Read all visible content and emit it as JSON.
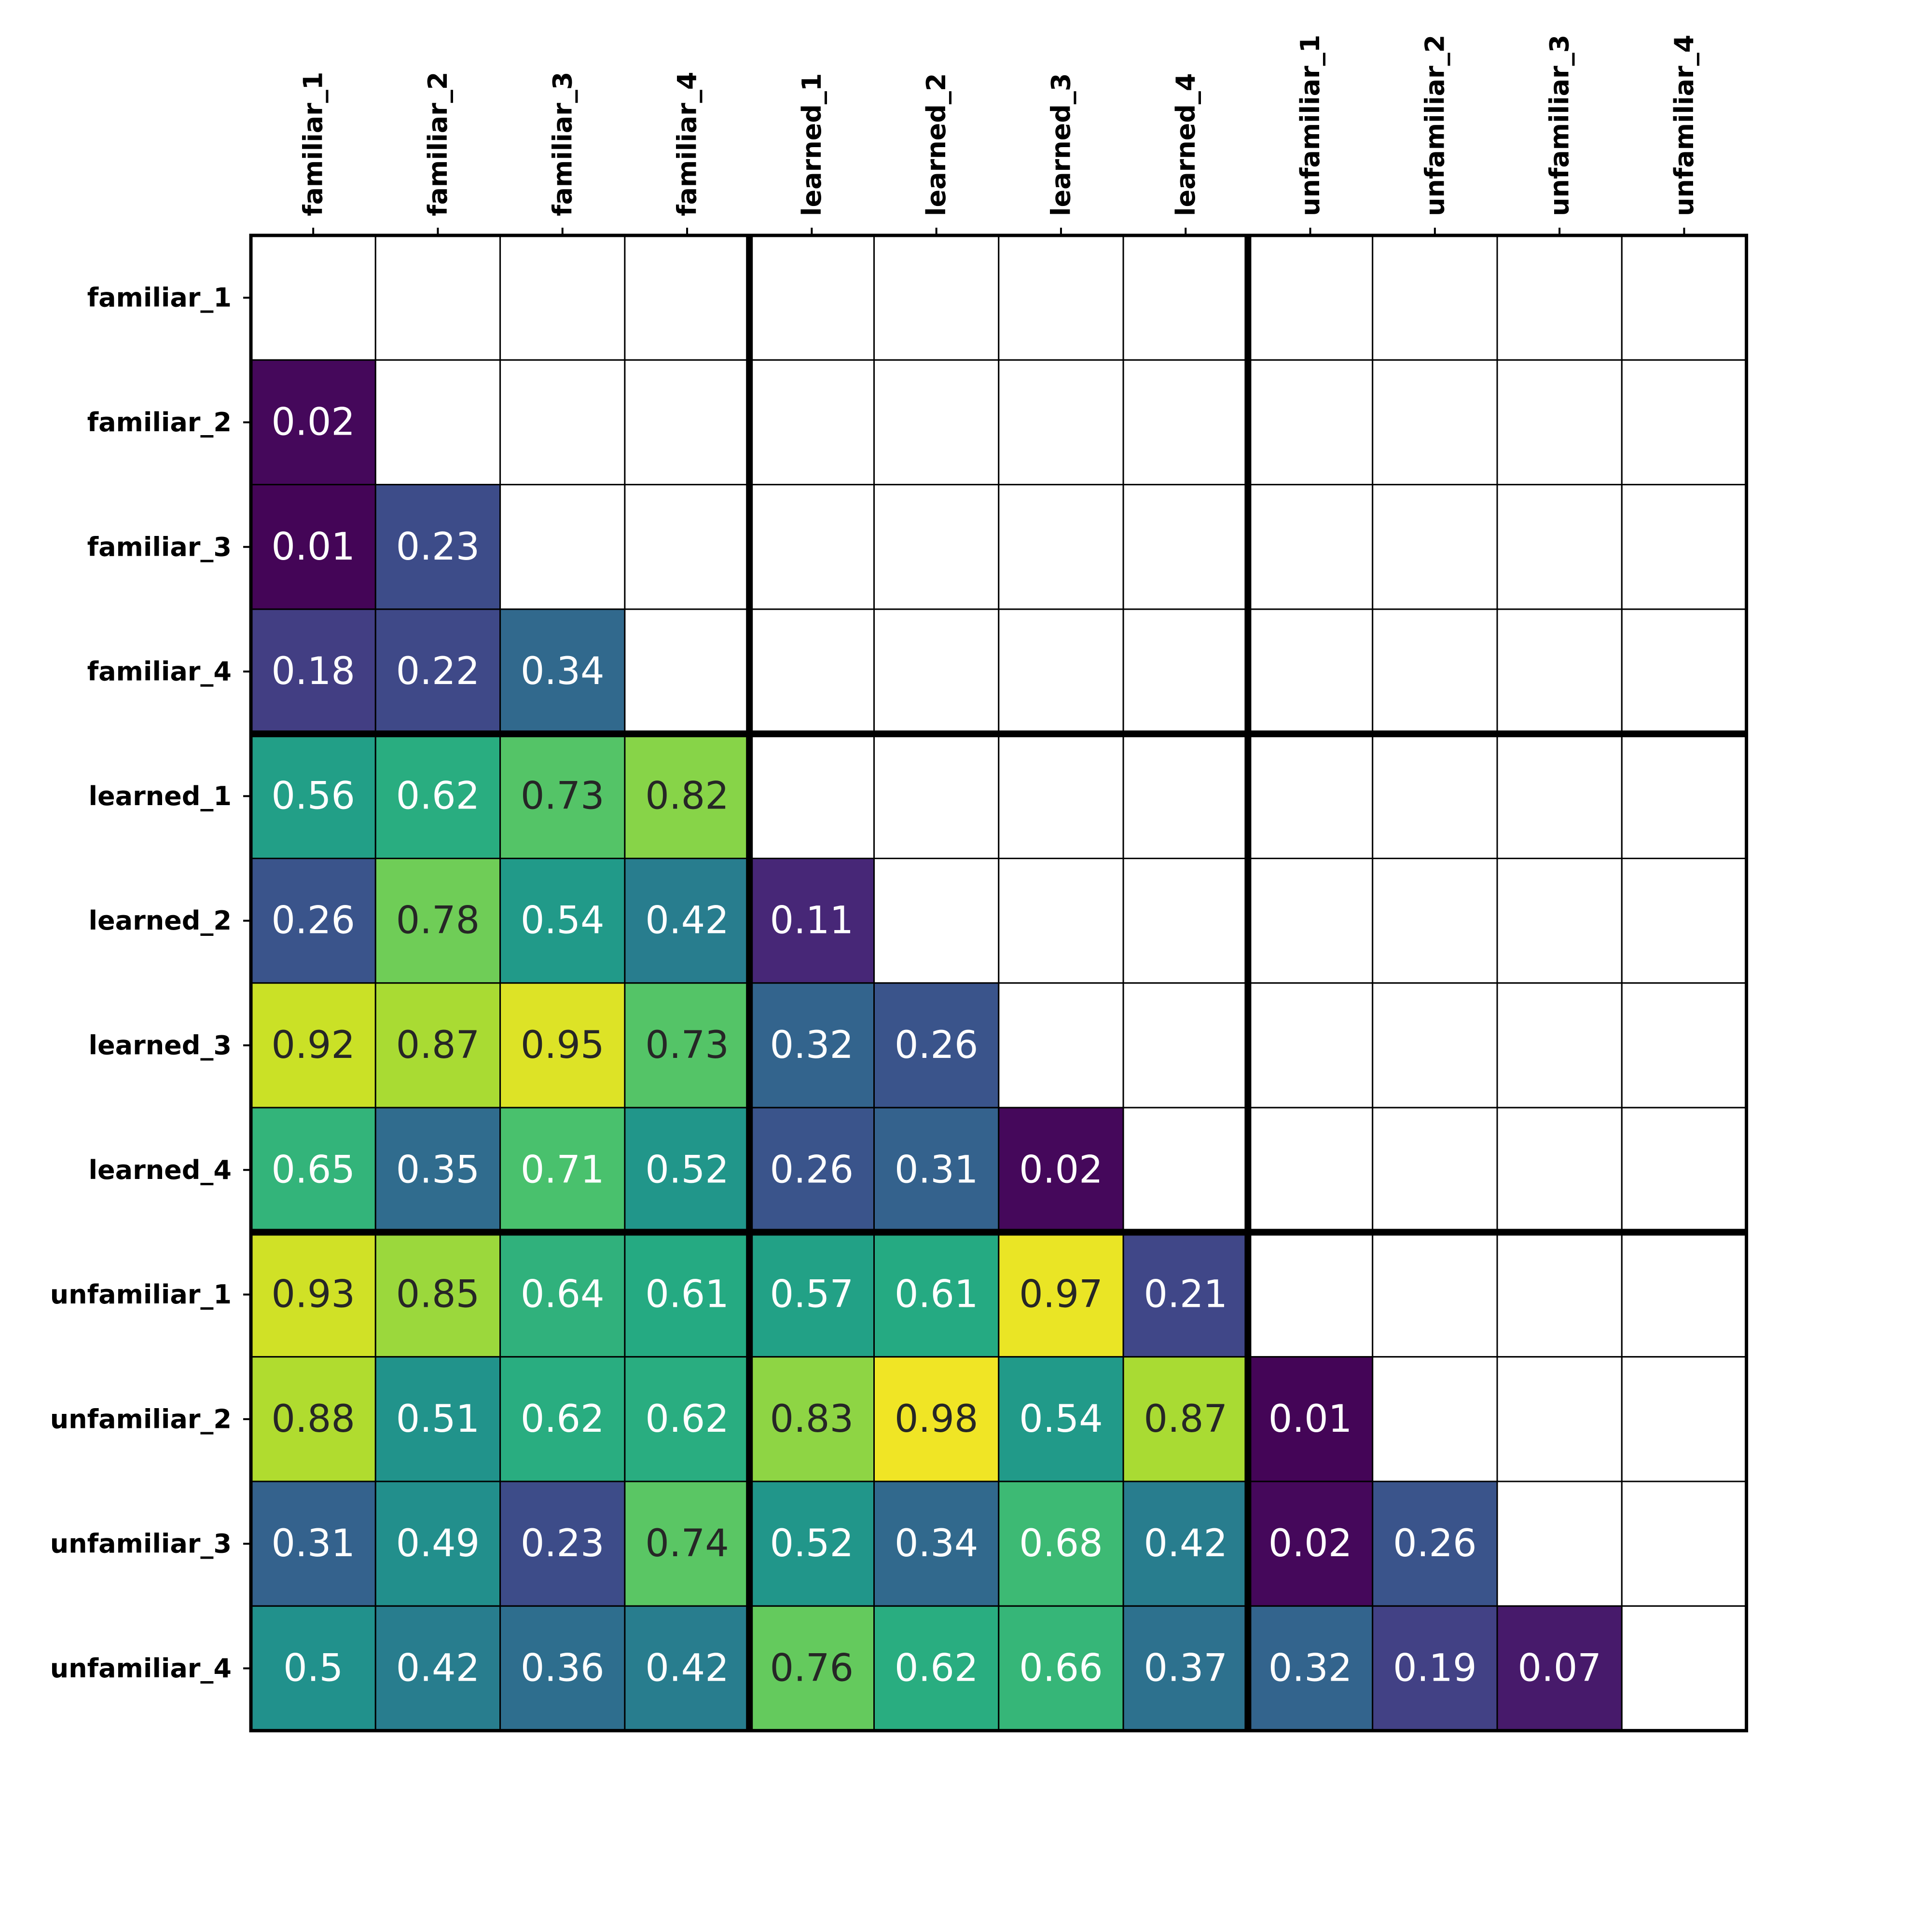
{
  "chart_data": {
    "type": "heatmap",
    "title": "",
    "xlabel": "",
    "ylabel": "",
    "colormap": "viridis",
    "value_range": [
      0,
      1
    ],
    "mask": "upper triangle including diagonal",
    "x_tick_position": "top",
    "x_tick_rotation": "vertical",
    "group_separators": [
      "familiar",
      "learned",
      "unfamiliar"
    ],
    "legend": "none",
    "grid": "on",
    "labels": [
      "familiar_1",
      "familiar_2",
      "familiar_3",
      "familiar_4",
      "learned_1",
      "learned_2",
      "learned_3",
      "learned_4",
      "unfamiliar_1",
      "unfamiliar_2",
      "unfamiliar_3",
      "unfamiliar_4"
    ],
    "values": [
      [
        null,
        null,
        null,
        null,
        null,
        null,
        null,
        null,
        null,
        null,
        null,
        null
      ],
      [
        0.02,
        null,
        null,
        null,
        null,
        null,
        null,
        null,
        null,
        null,
        null,
        null
      ],
      [
        0.01,
        0.23,
        null,
        null,
        null,
        null,
        null,
        null,
        null,
        null,
        null,
        null
      ],
      [
        0.18,
        0.22,
        0.34,
        null,
        null,
        null,
        null,
        null,
        null,
        null,
        null,
        null
      ],
      [
        0.56,
        0.62,
        0.73,
        0.82,
        null,
        null,
        null,
        null,
        null,
        null,
        null,
        null
      ],
      [
        0.26,
        0.78,
        0.54,
        0.42,
        0.11,
        null,
        null,
        null,
        null,
        null,
        null,
        null
      ],
      [
        0.92,
        0.87,
        0.95,
        0.73,
        0.32,
        0.26,
        null,
        null,
        null,
        null,
        null,
        null
      ],
      [
        0.65,
        0.35,
        0.71,
        0.52,
        0.26,
        0.31,
        0.02,
        null,
        null,
        null,
        null,
        null
      ],
      [
        0.93,
        0.85,
        0.64,
        0.61,
        0.57,
        0.61,
        0.97,
        0.21,
        null,
        null,
        null,
        null
      ],
      [
        0.88,
        0.51,
        0.62,
        0.62,
        0.83,
        0.98,
        0.54,
        0.87,
        0.01,
        null,
        null,
        null
      ],
      [
        0.31,
        0.49,
        0.23,
        0.74,
        0.52,
        0.34,
        0.68,
        0.42,
        0.02,
        0.26,
        null,
        null
      ],
      [
        0.5,
        0.42,
        0.36,
        0.42,
        0.76,
        0.62,
        0.66,
        0.37,
        0.32,
        0.19,
        0.07,
        null
      ]
    ],
    "value_text": [
      [
        "",
        "",
        "",
        "",
        "",
        "",
        "",
        "",
        "",
        "",
        "",
        ""
      ],
      [
        "0.02",
        "",
        "",
        "",
        "",
        "",
        "",
        "",
        "",
        "",
        "",
        ""
      ],
      [
        "0.01",
        "0.23",
        "",
        "",
        "",
        "",
        "",
        "",
        "",
        "",
        "",
        ""
      ],
      [
        "0.18",
        "0.22",
        "0.34",
        "",
        "",
        "",
        "",
        "",
        "",
        "",
        "",
        ""
      ],
      [
        "0.56",
        "0.62",
        "0.73",
        "0.82",
        "",
        "",
        "",
        "",
        "",
        "",
        "",
        ""
      ],
      [
        "0.26",
        "0.78",
        "0.54",
        "0.42",
        "0.11",
        "",
        "",
        "",
        "",
        "",
        "",
        ""
      ],
      [
        "0.92",
        "0.87",
        "0.95",
        "0.73",
        "0.32",
        "0.26",
        "",
        "",
        "",
        "",
        "",
        ""
      ],
      [
        "0.65",
        "0.35",
        "0.71",
        "0.52",
        "0.26",
        "0.31",
        "0.02",
        "",
        "",
        "",
        "",
        ""
      ],
      [
        "0.93",
        "0.85",
        "0.64",
        "0.61",
        "0.57",
        "0.61",
        "0.97",
        "0.21",
        "",
        "",
        "",
        ""
      ],
      [
        "0.88",
        "0.51",
        "0.62",
        "0.62",
        "0.83",
        "0.98",
        "0.54",
        "0.87",
        "0.01",
        "",
        "",
        ""
      ],
      [
        "0.31",
        "0.49",
        "0.23",
        "0.74",
        "0.52",
        "0.34",
        "0.68",
        "0.42",
        "0.02",
        "0.26",
        "",
        ""
      ],
      [
        "0.5",
        "0.42",
        "0.36",
        "0.42",
        "0.76",
        "0.62",
        "0.66",
        "0.37",
        "0.32",
        "0.19",
        "0.07",
        ""
      ]
    ],
    "colors": {
      "grid_line": "#000000",
      "masked_cell": "#ffffff",
      "text_on_dark": "#ffffff",
      "text_on_light": "#262626"
    }
  }
}
